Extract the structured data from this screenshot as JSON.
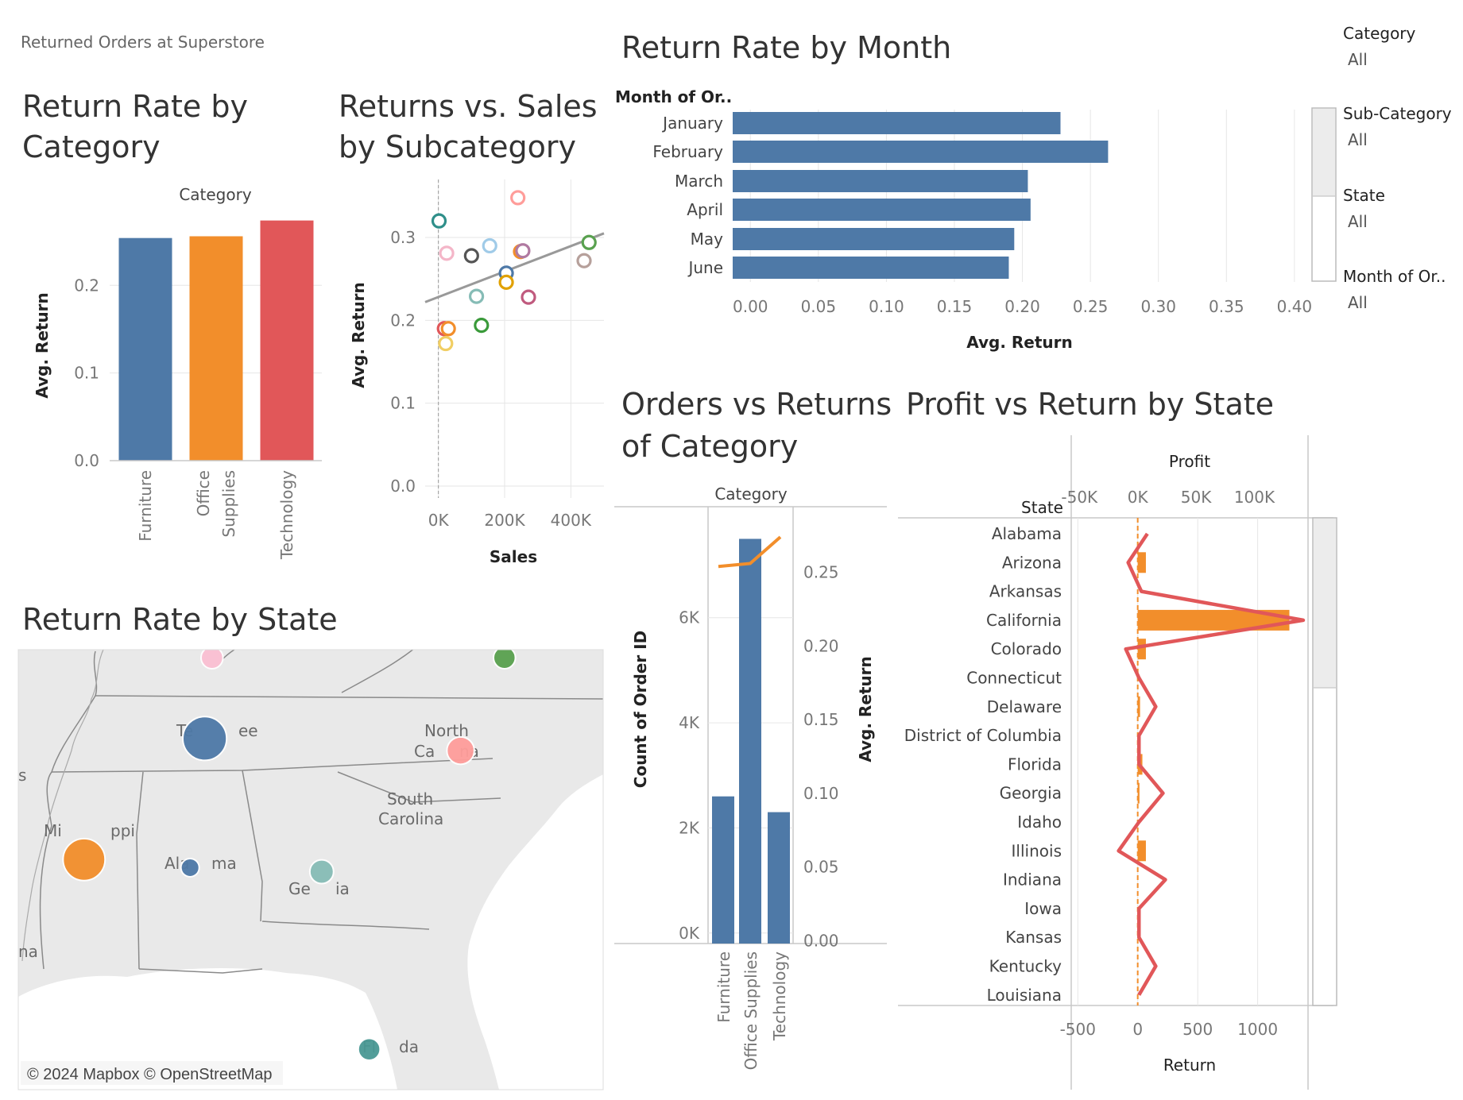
{
  "page": {
    "header": "Returned Orders at Superstore"
  },
  "colors": {
    "furniture": "#4e79a7",
    "office": "#f28e2b",
    "technology": "#e15759",
    "line": "#e15759",
    "orange": "#f28e2b"
  },
  "filters": [
    {
      "label": "Category",
      "value": "All"
    },
    {
      "label": "Sub-Category",
      "value": "All"
    },
    {
      "label": "State",
      "value": "All"
    },
    {
      "label": "Month of Or..",
      "value": "All"
    }
  ],
  "category_chart": {
    "title_lines": [
      "Return Rate by",
      "Category"
    ],
    "header": "Category",
    "ylabel": "Avg. Return",
    "ticks": [
      "0.0",
      "0.1",
      "0.2"
    ],
    "cat_labels": [
      [
        "Furniture"
      ],
      [
        "Office",
        "Supplies"
      ],
      [
        "Technology"
      ]
    ]
  },
  "scatter_chart": {
    "title_lines": [
      "Returns vs. Sales",
      "by Subcategory"
    ],
    "xlabel": "Sales",
    "ylabel": "Avg. Return",
    "xticks": [
      "0K",
      "200K",
      "400K"
    ],
    "yticks": [
      "0.0",
      "0.1",
      "0.2",
      "0.3"
    ]
  },
  "month_chart": {
    "title": "Return Rate by Month",
    "header": "Month of Or..",
    "xlabel": "Avg. Return",
    "xticks": [
      "0.00",
      "0.05",
      "0.10",
      "0.15",
      "0.20",
      "0.25",
      "0.30",
      "0.35",
      "0.40"
    ]
  },
  "orders_chart": {
    "title_lines": [
      "Orders vs Returns",
      "of Category"
    ],
    "header": "Category",
    "ylabel_left": "Count of Order ID",
    "ylabel_right": "Avg. Return",
    "left_ticks": [
      "0K",
      "2K",
      "4K",
      "6K"
    ],
    "right_ticks": [
      "0.00",
      "0.05",
      "0.10",
      "0.15",
      "0.20",
      "0.25"
    ]
  },
  "state_chart": {
    "title": "Profit vs Return by State",
    "row_header": "State",
    "top_axis_title": "Profit",
    "top_ticks": [
      "-50K",
      "0K",
      "50K",
      "100K"
    ],
    "bottom_ticks": [
      "-500",
      "0",
      "500",
      "1000"
    ],
    "bottom_axis_title": "Return"
  },
  "map": {
    "title": "Return Rate by State",
    "attribution": "© 2024 Mapbox © OpenStreetMap",
    "labels": [
      "Te",
      "ee",
      "North",
      "Ca",
      "na",
      "South",
      "Carolina",
      "Mi",
      "ppi",
      "Ala",
      "ma",
      "Ge",
      "ia",
      "Fl",
      "da",
      "s",
      "na"
    ]
  },
  "chart_data": [
    {
      "type": "bar",
      "name": "category",
      "categories": [
        "Furniture",
        "Office Supplies",
        "Technology"
      ],
      "values": [
        0.254,
        0.256,
        0.274
      ],
      "ylim": [
        0,
        0.28
      ],
      "colors": [
        "#4e79a7",
        "#f28e2b",
        "#e15759"
      ]
    },
    {
      "type": "scatter",
      "name": "subcategory",
      "xlim": [
        -40000,
        500000
      ],
      "ylim": [
        0,
        0.37
      ],
      "points": [
        {
          "x": 2000,
          "y": 0.32,
          "color": "#2f8f8a"
        },
        {
          "x": 240000,
          "y": 0.348,
          "color": "#ff9d9a"
        },
        {
          "x": 25000,
          "y": 0.281,
          "color": "#f4b6c8"
        },
        {
          "x": 100000,
          "y": 0.278,
          "color": "#555555"
        },
        {
          "x": 155000,
          "y": 0.29,
          "color": "#a0cbe8"
        },
        {
          "x": 248000,
          "y": 0.283,
          "color": "#f28e2b"
        },
        {
          "x": 255000,
          "y": 0.284,
          "color": "#b07aa1"
        },
        {
          "x": 455000,
          "y": 0.294,
          "color": "#59a14f"
        },
        {
          "x": 440000,
          "y": 0.272,
          "color": "#b6a09b"
        },
        {
          "x": 205000,
          "y": 0.257,
          "color": "#4e79a7"
        },
        {
          "x": 205000,
          "y": 0.246,
          "color": "#e1a100"
        },
        {
          "x": 115000,
          "y": 0.229,
          "color": "#86bcb6"
        },
        {
          "x": 272000,
          "y": 0.228,
          "color": "#c05a7e"
        },
        {
          "x": 130000,
          "y": 0.194,
          "color": "#3a9a3a"
        },
        {
          "x": 18000,
          "y": 0.19,
          "color": "#e15759"
        },
        {
          "x": 30000,
          "y": 0.19,
          "color": "#f28e2b"
        },
        {
          "x": 22000,
          "y": 0.172,
          "color": "#f1ce63"
        }
      ],
      "trend": {
        "x0": -40000,
        "y0": 0.222,
        "x1": 500000,
        "y1": 0.305
      }
    },
    {
      "type": "bar",
      "name": "month",
      "orientation": "horizontal",
      "categories": [
        "January",
        "February",
        "March",
        "April",
        "May",
        "June"
      ],
      "values": [
        0.228,
        0.263,
        0.204,
        0.206,
        0.194,
        0.19
      ],
      "xlim": [
        -0.013,
        0.41
      ]
    },
    {
      "type": "bar",
      "name": "orders",
      "categories": [
        "Furniture",
        "Office Supplies",
        "Technology"
      ],
      "values": [
        2600,
        7500,
        2300
      ],
      "ylim": [
        -200,
        7900
      ],
      "line_values": [
        0.254,
        0.256,
        0.274
      ],
      "line_ylim": [
        -0.002,
        0.287
      ]
    },
    {
      "type": "bar",
      "name": "state",
      "orientation": "horizontal",
      "states": [
        "Alabama",
        "Arizona",
        "Arkansas",
        "California",
        "Colorado",
        "Connecticut",
        "Delaware",
        "District of Columbia",
        "Florida",
        "Georgia",
        "Idaho",
        "Illinois",
        "Indiana",
        "Iowa",
        "Kansas",
        "Kentucky",
        "Louisiana"
      ],
      "profit": [
        0,
        7000,
        0,
        130000,
        7000,
        0,
        2000,
        0,
        4000,
        1500,
        0,
        7000,
        0,
        0,
        0,
        0,
        0
      ],
      "profit_xlim": [
        -57000,
        146000
      ],
      "return_values": [
        80,
        -80,
        30,
        1380,
        -100,
        10,
        150,
        10,
        10,
        210,
        10,
        -160,
        230,
        10,
        10,
        150,
        10
      ],
      "return_xlim": [
        -555,
        1420
      ]
    }
  ],
  "map_points": [
    {
      "state": "Tennessee",
      "lon": -86.4,
      "lat": 35.9,
      "r": 24,
      "color": "#4e79a7"
    },
    {
      "state": "North Carolina",
      "lon": -79.4,
      "lat": 35.6,
      "r": 15,
      "color": "#ff9d9a"
    },
    {
      "state": "Mississippi",
      "lon": -89.7,
      "lat": 32.9,
      "r": 23,
      "color": "#f28e2b"
    },
    {
      "state": "Alabama",
      "lon": -86.8,
      "lat": 32.7,
      "r": 10,
      "color": "#4e79a7"
    },
    {
      "state": "Georgia",
      "lon": -83.2,
      "lat": 32.6,
      "r": 13,
      "color": "#86bcb6"
    },
    {
      "state": "Florida",
      "lon": -81.9,
      "lat": 28.2,
      "r": 12,
      "color": "#499894"
    },
    {
      "state": "Kentucky",
      "lon": -86.2,
      "lat": 37.9,
      "r": 12,
      "color": "#fabfd2"
    },
    {
      "state": "Virginia",
      "lon": -78.2,
      "lat": 37.9,
      "r": 12,
      "color": "#59a14f"
    }
  ]
}
